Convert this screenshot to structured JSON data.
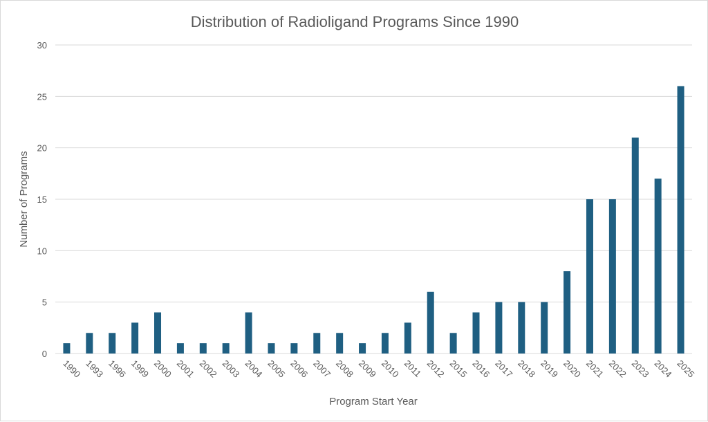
{
  "chart_data": {
    "type": "bar",
    "title": "Distribution of Radioligand Programs Since 1990",
    "xlabel": "Program Start Year",
    "ylabel": "Number of Programs",
    "ylim": [
      0,
      30
    ],
    "yticks": [
      0,
      5,
      10,
      15,
      20,
      25,
      30
    ],
    "grid": true,
    "legend": "none",
    "categories": [
      "1990",
      "1993",
      "1996",
      "1999",
      "2000",
      "2001",
      "2002",
      "2003",
      "2004",
      "2005",
      "2006",
      "2007",
      "2008",
      "2009",
      "2010",
      "2011",
      "2012",
      "2015",
      "2016",
      "2017",
      "2018",
      "2019",
      "2020",
      "2021",
      "2022",
      "2023",
      "2024",
      "2025"
    ],
    "values": [
      1,
      2,
      2,
      3,
      4,
      1,
      1,
      1,
      4,
      1,
      1,
      2,
      2,
      1,
      2,
      3,
      6,
      2,
      4,
      5,
      5,
      5,
      8,
      15,
      15,
      21,
      17,
      26
    ],
    "bar_color": "#1f5f82"
  }
}
